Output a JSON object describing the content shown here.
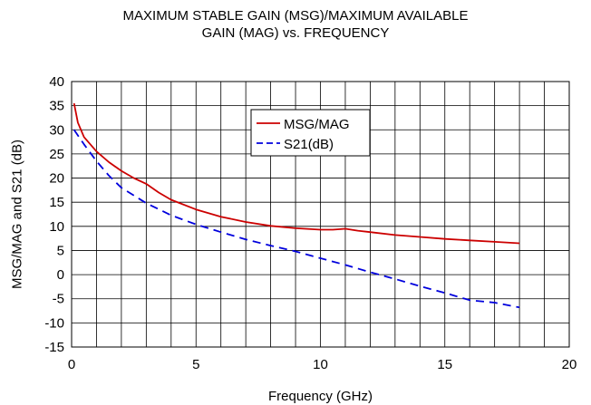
{
  "chart_data": {
    "type": "line",
    "title_line1": "MAXIMUM STABLE GAIN (MSG)/MAXIMUM AVAILABLE",
    "title_line2": "GAIN (MAG) vs. FREQUENCY",
    "xlabel": "Frequency (GHz)",
    "ylabel": "MSG/MAG and S21 (dB)",
    "xlim": [
      0,
      20
    ],
    "ylim": [
      -15,
      40
    ],
    "xticks": [
      0,
      5,
      10,
      15,
      20
    ],
    "yticks": [
      -15,
      -10,
      -5,
      0,
      5,
      10,
      15,
      20,
      25,
      30,
      35,
      40
    ],
    "grid": true,
    "legend_position": "upper-center",
    "series": [
      {
        "name": "MSG/MAG",
        "color": "#cc0000",
        "dash": "solid",
        "x": [
          0.1,
          0.25,
          0.5,
          1.0,
          1.5,
          2.0,
          2.5,
          3.0,
          3.5,
          4.0,
          5.0,
          6.0,
          7.0,
          8.0,
          9.0,
          10.0,
          10.5,
          11.0,
          11.5,
          12.0,
          13.0,
          14.0,
          15.0,
          16.0,
          17.0,
          18.0
        ],
        "y": [
          35.5,
          31.5,
          28.5,
          25.5,
          23.3,
          21.5,
          20.0,
          18.8,
          17.0,
          15.5,
          13.5,
          12.0,
          10.9,
          10.1,
          9.6,
          9.3,
          9.3,
          9.5,
          9.1,
          8.8,
          8.2,
          7.8,
          7.4,
          7.1,
          6.8,
          6.5
        ]
      },
      {
        "name": "S21(dB)",
        "color": "#0000dd",
        "dash": "dashed",
        "x": [
          0.1,
          0.5,
          1.0,
          1.5,
          2.0,
          3.0,
          4.0,
          5.0,
          6.0,
          7.0,
          8.0,
          9.0,
          10.0,
          11.0,
          12.0,
          13.0,
          14.0,
          15.0,
          16.0,
          17.0,
          18.0
        ],
        "y": [
          30.0,
          27.0,
          23.5,
          20.5,
          18.0,
          14.8,
          12.3,
          10.4,
          8.8,
          7.3,
          6.0,
          4.8,
          3.4,
          2.0,
          0.5,
          -0.9,
          -2.4,
          -3.8,
          -5.3,
          -5.8,
          -6.8
        ]
      }
    ]
  }
}
